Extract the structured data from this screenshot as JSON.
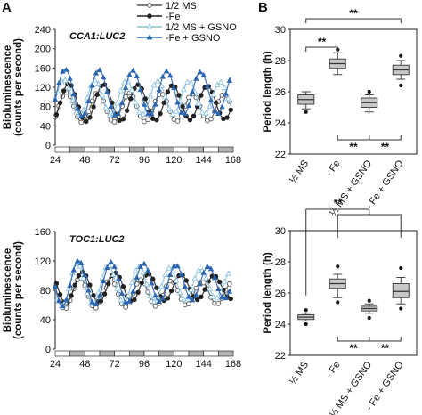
{
  "panel_labels": [
    "A",
    "B"
  ],
  "legend": [
    {
      "label": "1/2 MS",
      "color": "#555555",
      "marker": "open-circle"
    },
    {
      "label": "-Fe",
      "color": "#222222",
      "marker": "filled-circle"
    },
    {
      "label": "1/2 MS + GSNO",
      "color": "#8ec3df",
      "marker": "open-triangle"
    },
    {
      "label": "-Fe + GSNO",
      "color": "#2c66b0",
      "marker": "filled-triangle"
    }
  ],
  "chart_data": [
    {
      "id": "A-top",
      "type": "line",
      "annotation": "CCA1:LUC2",
      "ylabel": "Bioluminescence\n(counts per second)",
      "xlim": [
        24,
        168
      ],
      "ylim": [
        0,
        240
      ],
      "xticks": [
        24,
        48,
        72,
        96,
        120,
        144,
        168
      ],
      "yticks": [
        0,
        40,
        80,
        120,
        160,
        200,
        240
      ],
      "light_dark_bar": true,
      "series": [
        {
          "name": "1/2 MS",
          "color": "#555555",
          "marker": "open-circle",
          "mean": 78,
          "amp": 32,
          "period": 25.5,
          "phase": 33
        },
        {
          "name": "-Fe",
          "color": "#222222",
          "marker": "filled-circle",
          "mean": 88,
          "amp": 40,
          "period": 28.0,
          "phase": 35
        },
        {
          "name": "1/2 MS + GSNO",
          "color": "#8ec3df",
          "marker": "open-triangle",
          "mean": 98,
          "amp": 38,
          "period": 25.3,
          "phase": 31
        },
        {
          "name": "-Fe + GSNO",
          "color": "#2c66b0",
          "marker": "filled-triangle",
          "mean": 108,
          "amp": 50,
          "period": 27.4,
          "phase": 32
        }
      ]
    },
    {
      "id": "B-top",
      "type": "box",
      "ylabel": "Period length (h)",
      "ylim": [
        22,
        30
      ],
      "yticks": [
        22,
        24,
        26,
        28,
        30
      ],
      "categories": [
        "½ MS",
        "- Fe",
        "½ MS + GSNO",
        "- Fe + GSNO"
      ],
      "boxes": [
        {
          "whisker_low": 24.9,
          "q1": 25.2,
          "median": 25.5,
          "q3": 25.8,
          "whisker_high": 26.0,
          "outliers": [
            24.7
          ]
        },
        {
          "whisker_low": 27.1,
          "q1": 27.5,
          "median": 27.8,
          "q3": 28.1,
          "whisker_high": 28.5,
          "outliers": [
            28.7
          ]
        },
        {
          "whisker_low": 24.7,
          "q1": 25.0,
          "median": 25.3,
          "q3": 25.6,
          "whisker_high": 25.8,
          "outliers": [
            26.0
          ]
        },
        {
          "whisker_low": 26.8,
          "q1": 27.1,
          "median": 27.4,
          "q3": 27.7,
          "whisker_high": 28.0,
          "outliers": [
            28.3,
            26.4
          ]
        }
      ],
      "significance": [
        {
          "from": 0,
          "to": 3,
          "label": "**",
          "position": "top"
        },
        {
          "from": 0,
          "to": 1,
          "label": "**",
          "position": "top"
        },
        {
          "from": 1,
          "to": 2,
          "label": "**",
          "position": "bottom"
        },
        {
          "from": 2,
          "to": 3,
          "label": "**",
          "position": "bottom"
        }
      ]
    },
    {
      "id": "A-bottom",
      "type": "line",
      "annotation": "TOC1:LUC2",
      "ylabel": "Bioluminescence\n(counts per second)",
      "xlim": [
        24,
        168
      ],
      "ylim": [
        0,
        160
      ],
      "xticks": [
        24,
        48,
        72,
        96,
        120,
        144,
        168
      ],
      "yticks": [
        0,
        40,
        80,
        120,
        160
      ],
      "light_dark_bar": true,
      "series": [
        {
          "name": "1/2 MS",
          "color": "#555555",
          "marker": "open-circle",
          "mean": 76,
          "amp": 22,
          "period": 24.6,
          "phase": 44,
          "decay": 0.35
        },
        {
          "name": "-Fe",
          "color": "#222222",
          "marker": "filled-circle",
          "mean": 84,
          "amp": 22,
          "period": 26.6,
          "phase": 46,
          "decay": 0.3
        },
        {
          "name": "1/2 MS + GSNO",
          "color": "#8ec3df",
          "marker": "open-triangle",
          "mean": 88,
          "amp": 30,
          "period": 24.9,
          "phase": 42,
          "decay": 0.4
        },
        {
          "name": "-Fe + GSNO",
          "color": "#2c66b0",
          "marker": "filled-triangle",
          "mean": 90,
          "amp": 32,
          "period": 26.2,
          "phase": 43,
          "decay": 0.35
        }
      ]
    },
    {
      "id": "B-bottom",
      "type": "box",
      "ylabel": "Period length (h)",
      "ylim": [
        22,
        30
      ],
      "yticks": [
        22,
        24,
        26,
        28,
        30
      ],
      "categories": [
        "½ MS",
        "- Fe",
        "½ MS + GSNO",
        "- Fe + GSNO"
      ],
      "boxes": [
        {
          "whisker_low": 24.2,
          "q1": 24.3,
          "median": 24.45,
          "q3": 24.6,
          "whisker_high": 24.7,
          "outliers": [
            24.9,
            24.0
          ]
        },
        {
          "whisker_low": 25.7,
          "q1": 26.3,
          "median": 26.6,
          "q3": 26.9,
          "whisker_high": 27.2,
          "outliers": [
            27.7,
            25.4
          ]
        },
        {
          "whisker_low": 24.7,
          "q1": 24.85,
          "median": 25.0,
          "q3": 25.15,
          "whisker_high": 25.3,
          "outliers": [
            25.5,
            24.4
          ]
        },
        {
          "whisker_low": 25.3,
          "q1": 25.7,
          "median": 26.1,
          "q3": 26.6,
          "whisker_high": 27.0,
          "outliers": [
            27.6,
            25.0
          ]
        }
      ],
      "significance": [
        {
          "from": 0,
          "to": [
            1,
            3
          ],
          "label": "**",
          "position": "top"
        },
        {
          "from": 1,
          "to": 2,
          "label": "**",
          "position": "bottom"
        },
        {
          "from": 2,
          "to": 3,
          "label": "**",
          "position": "bottom"
        }
      ]
    }
  ]
}
